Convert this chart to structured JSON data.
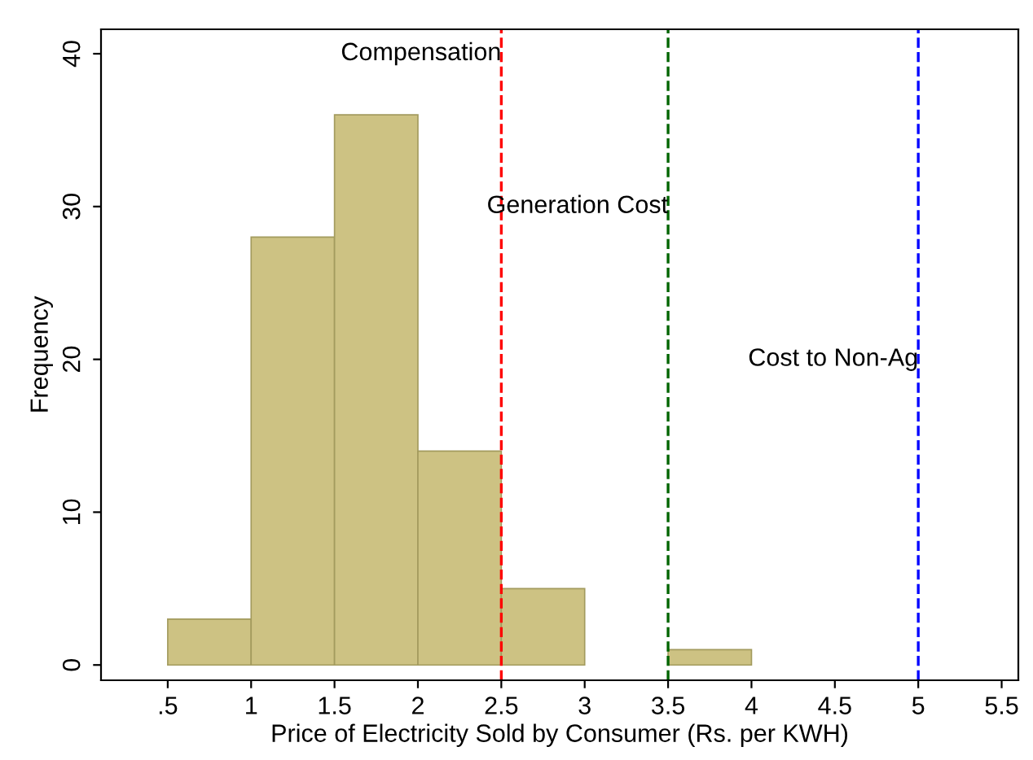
{
  "chart_data": {
    "type": "histogram",
    "xlabel": "Price of Electricity Sold by Consumer (Rs. per KWH)",
    "ylabel": "Frequency",
    "bins": [
      0.5,
      1,
      1.5,
      2,
      2.5,
      3,
      3.5,
      4
    ],
    "values": [
      3,
      28,
      36,
      14,
      5,
      0,
      1
    ],
    "color": "#cdc283",
    "xlim": [
      0.1,
      5.6
    ],
    "ylim": [
      -1,
      41.6
    ],
    "xticks": [
      {
        "value": 0.5,
        "label": ".5"
      },
      1,
      1.5,
      2,
      2.5,
      3,
      3.5,
      4,
      4.5,
      5,
      5.5
    ],
    "yticks": [
      0,
      10,
      20,
      30,
      40
    ],
    "grid": false,
    "ref_lines": [
      {
        "axis": "x",
        "value": 2.5,
        "color": "#ff0000",
        "line_style": "dashed"
      },
      {
        "axis": "x",
        "value": 3.5,
        "color": "#006400",
        "line_style": "dashed"
      },
      {
        "axis": "x",
        "value": 5,
        "color": "#0000ff",
        "line_style": "dashed"
      }
    ],
    "annotations": [
      {
        "text": "Compensation",
        "x": 2.5,
        "y": 40
      },
      {
        "text": "Generation Cost",
        "x": 3.5,
        "y": 30
      },
      {
        "text": "Cost to Non-Ag",
        "x": 5,
        "y": 20
      }
    ]
  }
}
